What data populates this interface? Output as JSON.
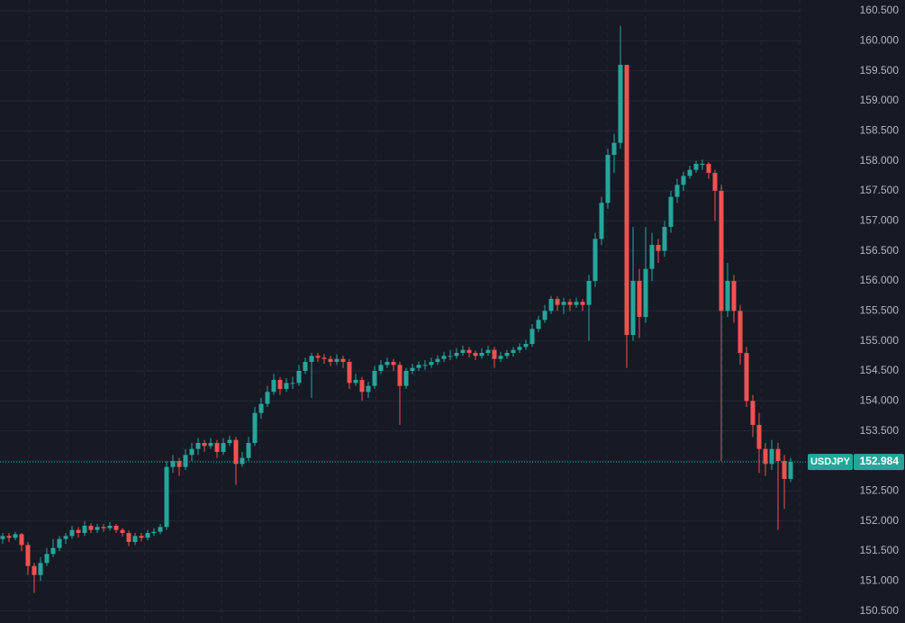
{
  "chart_data": {
    "type": "candlestick",
    "symbol": "USDJPY",
    "last_price": 152.984,
    "up_color": "#26a69a",
    "down_color": "#ef5350",
    "ylim": [
      150.3,
      160.65
    ],
    "yticks": [
      {
        "value": 150.5,
        "label": "150.500"
      },
      {
        "value": 151,
        "label": "151.000"
      },
      {
        "value": 151.5,
        "label": "151.500"
      },
      {
        "value": 152,
        "label": "152.000"
      },
      {
        "value": 152.5,
        "label": "152.500"
      },
      {
        "value": 153,
        "label": "153.000"
      },
      {
        "value": 153.5,
        "label": "153.500"
      },
      {
        "value": 154,
        "label": "154.000"
      },
      {
        "value": 154.5,
        "label": "154.500"
      },
      {
        "value": 155,
        "label": "155.000"
      },
      {
        "value": 155.5,
        "label": "155.500"
      },
      {
        "value": 156,
        "label": "156.000"
      },
      {
        "value": 156.5,
        "label": "156.500"
      },
      {
        "value": 157,
        "label": "157.000"
      },
      {
        "value": 157.5,
        "label": "157.500"
      },
      {
        "value": 158,
        "label": "158.000"
      },
      {
        "value": 158.5,
        "label": "158.500"
      },
      {
        "value": 159,
        "label": "159.000"
      },
      {
        "value": 159.5,
        "label": "159.500"
      },
      {
        "value": 160,
        "label": "160.000"
      },
      {
        "value": 160.5,
        "label": "160.500"
      }
    ],
    "grid": true,
    "ohlc": [
      [
        151.7,
        151.8,
        151.62,
        151.75
      ],
      [
        151.75,
        151.8,
        151.65,
        151.72
      ],
      [
        151.72,
        151.82,
        151.68,
        151.78
      ],
      [
        151.78,
        151.8,
        151.5,
        151.6
      ],
      [
        151.6,
        151.65,
        151.1,
        151.25
      ],
      [
        151.25,
        151.3,
        150.8,
        151.1
      ],
      [
        151.1,
        151.4,
        151.0,
        151.3
      ],
      [
        151.3,
        151.55,
        151.25,
        151.45
      ],
      [
        151.45,
        151.7,
        151.4,
        151.55
      ],
      [
        151.55,
        151.75,
        151.5,
        151.7
      ],
      [
        151.7,
        151.8,
        151.62,
        151.75
      ],
      [
        151.75,
        151.92,
        151.7,
        151.85
      ],
      [
        151.85,
        151.9,
        151.72,
        151.8
      ],
      [
        151.8,
        152.0,
        151.75,
        151.92
      ],
      [
        151.92,
        151.96,
        151.8,
        151.85
      ],
      [
        151.85,
        151.95,
        151.8,
        151.9
      ],
      [
        151.9,
        151.95,
        151.82,
        151.88
      ],
      [
        151.88,
        151.98,
        151.84,
        151.92
      ],
      [
        151.92,
        151.95,
        151.8,
        151.85
      ],
      [
        151.85,
        151.88,
        151.74,
        151.8
      ],
      [
        151.8,
        151.84,
        151.58,
        151.65
      ],
      [
        151.65,
        151.8,
        151.6,
        151.75
      ],
      [
        151.75,
        151.8,
        151.66,
        151.72
      ],
      [
        151.72,
        151.85,
        151.68,
        151.8
      ],
      [
        151.8,
        151.88,
        151.75,
        151.82
      ],
      [
        151.82,
        151.95,
        151.78,
        151.9
      ],
      [
        151.9,
        153.0,
        151.85,
        152.9
      ],
      [
        152.9,
        153.1,
        152.8,
        153.0
      ],
      [
        153.0,
        153.05,
        152.75,
        152.9
      ],
      [
        152.9,
        153.2,
        152.85,
        153.1
      ],
      [
        153.1,
        153.3,
        153.0,
        153.2
      ],
      [
        153.2,
        153.38,
        153.1,
        153.3
      ],
      [
        153.3,
        153.35,
        153.15,
        153.25
      ],
      [
        153.25,
        153.38,
        153.2,
        153.3
      ],
      [
        153.3,
        153.35,
        153.05,
        153.15
      ],
      [
        153.15,
        153.38,
        153.1,
        153.3
      ],
      [
        153.3,
        153.42,
        153.25,
        153.35
      ],
      [
        153.35,
        153.4,
        152.6,
        152.95
      ],
      [
        152.95,
        153.15,
        152.9,
        153.05
      ],
      [
        153.05,
        153.4,
        153.0,
        153.3
      ],
      [
        153.3,
        153.9,
        153.25,
        153.8
      ],
      [
        153.8,
        154.05,
        153.7,
        153.95
      ],
      [
        153.95,
        154.25,
        153.9,
        154.15
      ],
      [
        154.15,
        154.45,
        154.1,
        154.35
      ],
      [
        154.35,
        154.4,
        154.1,
        154.2
      ],
      [
        154.2,
        154.38,
        154.15,
        154.3
      ],
      [
        154.3,
        154.4,
        154.2,
        154.3
      ],
      [
        154.3,
        154.6,
        154.25,
        154.5
      ],
      [
        154.5,
        154.72,
        154.45,
        154.65
      ],
      [
        154.65,
        154.8,
        154.05,
        154.75
      ],
      [
        154.75,
        154.8,
        154.65,
        154.72
      ],
      [
        154.72,
        154.78,
        154.62,
        154.7
      ],
      [
        154.7,
        154.75,
        154.58,
        154.65
      ],
      [
        154.65,
        154.78,
        154.6,
        154.7
      ],
      [
        154.7,
        154.75,
        154.55,
        154.65
      ],
      [
        154.65,
        154.7,
        154.2,
        154.3
      ],
      [
        154.3,
        154.45,
        154.25,
        154.35
      ],
      [
        154.35,
        154.4,
        154.0,
        154.15
      ],
      [
        154.15,
        154.32,
        154.05,
        154.25
      ],
      [
        154.25,
        154.58,
        154.2,
        154.5
      ],
      [
        154.5,
        154.68,
        154.45,
        154.6
      ],
      [
        154.6,
        154.72,
        154.55,
        154.65
      ],
      [
        154.65,
        154.7,
        154.5,
        154.6
      ],
      [
        154.6,
        154.65,
        153.6,
        154.25
      ],
      [
        154.25,
        154.55,
        154.2,
        154.5
      ],
      [
        154.5,
        154.62,
        154.45,
        154.55
      ],
      [
        154.55,
        154.66,
        154.5,
        154.6
      ],
      [
        154.6,
        154.68,
        154.52,
        154.6
      ],
      [
        154.6,
        154.72,
        154.55,
        154.65
      ],
      [
        154.65,
        154.76,
        154.6,
        154.7
      ],
      [
        154.7,
        154.82,
        154.65,
        154.75
      ],
      [
        154.75,
        154.85,
        154.68,
        154.75
      ],
      [
        154.75,
        154.88,
        154.7,
        154.8
      ],
      [
        154.8,
        154.92,
        154.75,
        154.85
      ],
      [
        154.85,
        154.9,
        154.72,
        154.8
      ],
      [
        154.8,
        154.84,
        154.68,
        154.75
      ],
      [
        154.75,
        154.88,
        154.7,
        154.8
      ],
      [
        154.8,
        154.92,
        154.75,
        154.85
      ],
      [
        154.85,
        154.9,
        154.55,
        154.7
      ],
      [
        154.7,
        154.82,
        154.65,
        154.75
      ],
      [
        154.75,
        154.85,
        154.7,
        154.8
      ],
      [
        154.8,
        154.9,
        154.74,
        154.85
      ],
      [
        154.85,
        154.96,
        154.8,
        154.9
      ],
      [
        154.9,
        155.02,
        154.85,
        154.95
      ],
      [
        154.95,
        155.28,
        154.9,
        155.2
      ],
      [
        155.2,
        155.42,
        155.15,
        155.35
      ],
      [
        155.35,
        155.6,
        155.3,
        155.5
      ],
      [
        155.5,
        155.75,
        155.45,
        155.7
      ],
      [
        155.7,
        155.74,
        155.5,
        155.6
      ],
      [
        155.6,
        155.72,
        155.45,
        155.65
      ],
      [
        155.65,
        155.7,
        155.5,
        155.6
      ],
      [
        155.6,
        155.72,
        155.55,
        155.65
      ],
      [
        155.65,
        155.7,
        155.5,
        155.6
      ],
      [
        155.6,
        156.1,
        155.0,
        156.0
      ],
      [
        156.0,
        156.8,
        155.9,
        156.7
      ],
      [
        156.7,
        157.4,
        156.6,
        157.3
      ],
      [
        157.3,
        158.2,
        157.2,
        158.1
      ],
      [
        158.1,
        158.45,
        157.8,
        158.3
      ],
      [
        158.3,
        160.25,
        158.2,
        159.6
      ],
      [
        159.6,
        159.6,
        154.55,
        155.1
      ],
      [
        155.1,
        156.9,
        155.0,
        156.0
      ],
      [
        156.0,
        156.2,
        155.05,
        155.4
      ],
      [
        155.4,
        156.9,
        155.3,
        156.2
      ],
      [
        156.2,
        156.8,
        156.0,
        156.6
      ],
      [
        156.6,
        156.7,
        156.3,
        156.5
      ],
      [
        156.5,
        157.0,
        156.4,
        156.9
      ],
      [
        156.9,
        157.5,
        156.8,
        157.4
      ],
      [
        157.4,
        157.7,
        157.3,
        157.6
      ],
      [
        157.6,
        157.82,
        157.5,
        157.75
      ],
      [
        157.75,
        157.92,
        157.7,
        157.85
      ],
      [
        157.85,
        158.0,
        157.8,
        157.95
      ],
      [
        157.95,
        158.02,
        157.85,
        157.95
      ],
      [
        157.95,
        157.98,
        157.7,
        157.8
      ],
      [
        157.8,
        157.85,
        157.0,
        157.5
      ],
      [
        157.5,
        157.6,
        153.0,
        155.5
      ],
      [
        155.5,
        156.3,
        155.4,
        156.0
      ],
      [
        156.0,
        156.1,
        155.3,
        155.5
      ],
      [
        155.5,
        155.6,
        154.6,
        154.8
      ],
      [
        154.8,
        154.9,
        153.9,
        154.0
      ],
      [
        154.0,
        154.1,
        153.4,
        153.6
      ],
      [
        153.6,
        153.8,
        152.8,
        153.2
      ],
      [
        153.2,
        153.3,
        152.75,
        152.95
      ],
      [
        152.95,
        153.35,
        152.85,
        153.2
      ],
      [
        153.2,
        153.3,
        151.85,
        153.0
      ],
      [
        153.0,
        153.1,
        152.2,
        152.7
      ],
      [
        152.7,
        153.05,
        152.65,
        152.984
      ]
    ]
  }
}
